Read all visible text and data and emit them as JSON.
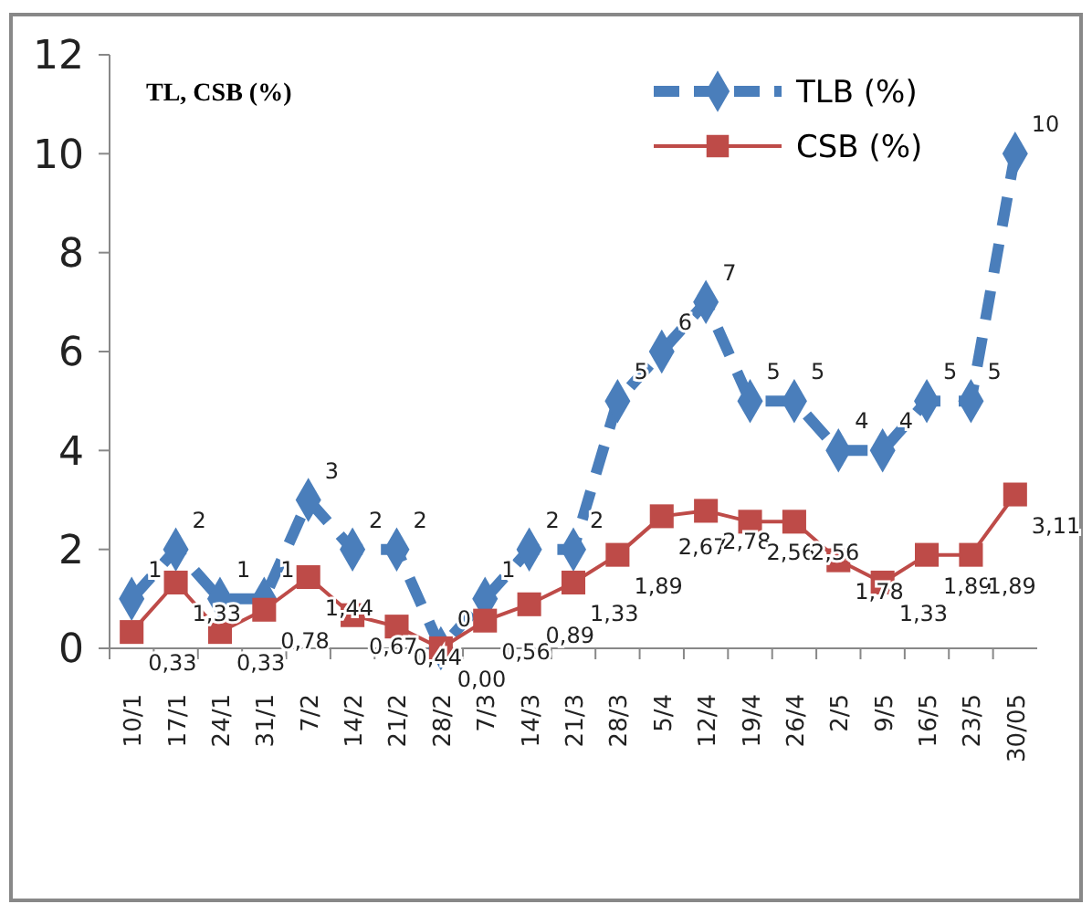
{
  "chart_data": {
    "type": "line",
    "ylabel": "TL, CSB (%)",
    "categories": [
      "10/1",
      "17/1",
      "24/1",
      "31/1",
      "7/2",
      "14/2",
      "21/2",
      "28/2",
      "7/3",
      "14/3",
      "21/3",
      "28/3",
      "5/4",
      "12/4",
      "19/4",
      "26/4",
      "2/5",
      "9/5",
      "16/5",
      "23/5",
      "30/05"
    ],
    "series": [
      {
        "name": "TLB (%)",
        "color": "#4a7ebb",
        "marker": "diamond",
        "line_style": "dashed",
        "values": [
          1,
          2,
          1,
          1,
          3,
          2,
          2,
          0,
          1,
          2,
          2,
          5,
          6,
          7,
          5,
          5,
          4,
          4,
          5,
          5,
          10
        ],
        "value_labels": [
          "1",
          "2",
          "1",
          "1",
          "3",
          "2",
          "2",
          "0",
          "1",
          "2",
          "2",
          "5",
          "6",
          "7",
          "5",
          "5",
          "4",
          "4",
          "5",
          "5",
          "10"
        ]
      },
      {
        "name": "CSB (%)",
        "color": "#be4b48",
        "marker": "square",
        "line_style": "solid",
        "values": [
          0.33,
          1.33,
          0.33,
          0.78,
          1.44,
          0.67,
          0.44,
          0,
          0.56,
          0.89,
          1.33,
          1.89,
          2.67,
          2.78,
          2.56,
          2.56,
          1.78,
          1.33,
          1.89,
          1.89,
          3.11
        ],
        "value_labels": [
          "0,33",
          "1,33",
          "0,33",
          "0,78",
          "1,44",
          "0,67",
          "0,44",
          "0,00",
          "0,56",
          "0,89",
          "1,33",
          "1,89",
          "2,67",
          "2,78",
          "2,56",
          "2,56",
          "1,78",
          "1,33",
          "1,89",
          "1,89",
          "3,11"
        ]
      }
    ],
    "ylim": [
      0,
      12
    ],
    "yticks": [
      0,
      2,
      4,
      6,
      8,
      10,
      12
    ],
    "grid": false,
    "legend": "top right"
  }
}
